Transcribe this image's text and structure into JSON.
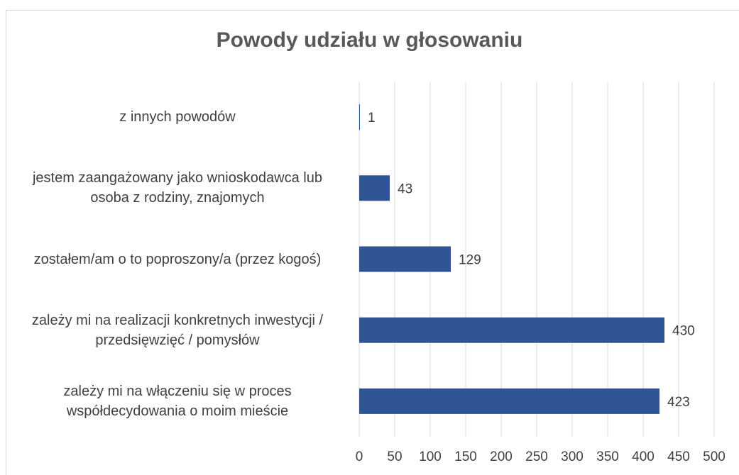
{
  "chart_data": {
    "type": "bar",
    "orientation": "horizontal",
    "title": "Powody udziału w głosowaniu",
    "categories": [
      "z innych powodów",
      "jestem zaangażowany jako wnioskodawca lub osoba z rodziny, znajomych",
      "zostałem/am o to poproszony/a (przez kogoś)",
      "zależy mi na realizacji konkretnych inwestycji / przedsięwzięć / pomysłów",
      "zależy mi na włączeniu się w proces współdecydowania o moim mieście"
    ],
    "values": [
      1,
      43,
      129,
      430,
      423
    ],
    "color": "#2f5597",
    "xlim": [
      0,
      500
    ],
    "xticks": [
      0,
      50,
      100,
      150,
      200,
      250,
      300,
      350,
      400,
      450,
      500
    ],
    "grid": true
  }
}
